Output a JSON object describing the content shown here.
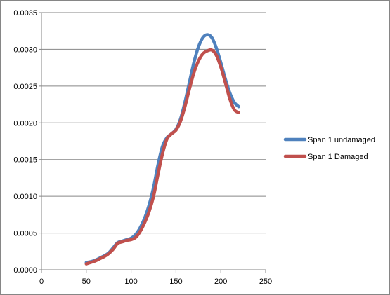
{
  "chart_data": {
    "type": "line",
    "title": "",
    "xlabel": "",
    "ylabel": "",
    "xlim": [
      0,
      250
    ],
    "ylim": [
      0,
      0.0035
    ],
    "x_ticks": [
      "0",
      "50",
      "100",
      "150",
      "200",
      "250"
    ],
    "y_ticks": [
      "0.0000",
      "0.0005",
      "0.0010",
      "0.0015",
      "0.0020",
      "0.0025",
      "0.0030",
      "0.0035"
    ],
    "grid": "horizontal",
    "legend_position": "right",
    "series": [
      {
        "name": "Span 1 undamaged",
        "color": "#4F81BD",
        "points": [
          [
            50,
            0.0001
          ],
          [
            55,
            0.00011
          ],
          [
            60,
            0.00013
          ],
          [
            65,
            0.00016
          ],
          [
            70,
            0.00019
          ],
          [
            75,
            0.00023
          ],
          [
            80,
            0.0003
          ],
          [
            85,
            0.00037
          ],
          [
            90,
            0.00039
          ],
          [
            95,
            0.00041
          ],
          [
            100,
            0.00043
          ],
          [
            105,
            0.00048
          ],
          [
            110,
            0.00057
          ],
          [
            115,
            0.0007
          ],
          [
            120,
            0.00088
          ],
          [
            125,
            0.00112
          ],
          [
            130,
            0.00143
          ],
          [
            135,
            0.00168
          ],
          [
            140,
            0.0018
          ],
          [
            145,
            0.00185
          ],
          [
            150,
            0.00191
          ],
          [
            155,
            0.00205
          ],
          [
            160,
            0.00228
          ],
          [
            165,
            0.00255
          ],
          [
            170,
            0.00282
          ],
          [
            175,
            0.00303
          ],
          [
            180,
            0.00316
          ],
          [
            185,
            0.0032
          ],
          [
            190,
            0.00316
          ],
          [
            195,
            0.00302
          ],
          [
            200,
            0.00282
          ],
          [
            205,
            0.0026
          ],
          [
            210,
            0.00241
          ],
          [
            215,
            0.00228
          ],
          [
            220,
            0.00222
          ]
        ]
      },
      {
        "name": "Span 1 Damaged",
        "color": "#C0504D",
        "points": [
          [
            50,
            8e-05
          ],
          [
            55,
            0.0001
          ],
          [
            60,
            0.00012
          ],
          [
            65,
            0.00015
          ],
          [
            70,
            0.00018
          ],
          [
            75,
            0.00022
          ],
          [
            80,
            0.00028
          ],
          [
            85,
            0.00036
          ],
          [
            90,
            0.00038
          ],
          [
            95,
            0.0004
          ],
          [
            100,
            0.00041
          ],
          [
            105,
            0.00044
          ],
          [
            110,
            0.00052
          ],
          [
            115,
            0.00064
          ],
          [
            120,
            0.00079
          ],
          [
            125,
            0.001
          ],
          [
            130,
            0.0013
          ],
          [
            135,
            0.00158
          ],
          [
            140,
            0.00178
          ],
          [
            145,
            0.00185
          ],
          [
            150,
            0.0019
          ],
          [
            155,
            0.00202
          ],
          [
            160,
            0.00222
          ],
          [
            165,
            0.00246
          ],
          [
            170,
            0.00268
          ],
          [
            175,
            0.00284
          ],
          [
            180,
            0.00294
          ],
          [
            185,
            0.00298
          ],
          [
            190,
            0.00299
          ],
          [
            195,
            0.00292
          ],
          [
            200,
            0.00276
          ],
          [
            205,
            0.00255
          ],
          [
            210,
            0.00233
          ],
          [
            215,
            0.00218
          ],
          [
            220,
            0.00214
          ]
        ]
      }
    ]
  }
}
